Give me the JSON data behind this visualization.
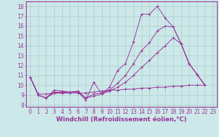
{
  "background_color": "#cce8e8",
  "grid_color": "#aacccc",
  "line_color": "#993399",
  "xlabel": "Windchill (Refroidissement éolien,°C)",
  "xlabel_fontsize": 6.5,
  "tick_fontsize": 5.5,
  "xlim": [
    -0.5,
    23.5
  ],
  "ylim": [
    7.8,
    18.5
  ],
  "yticks": [
    8,
    9,
    10,
    11,
    12,
    13,
    14,
    15,
    16,
    17,
    18
  ],
  "xticks": [
    0,
    1,
    2,
    3,
    4,
    5,
    6,
    7,
    8,
    9,
    10,
    11,
    12,
    13,
    14,
    15,
    16,
    17,
    18,
    19,
    20,
    21,
    22,
    23
  ],
  "line1_x": [
    0,
    1,
    2,
    3,
    4,
    5,
    6,
    7,
    8,
    9,
    10,
    11,
    12,
    13,
    14,
    15,
    16,
    17,
    18,
    19,
    20,
    21,
    22
  ],
  "line1_y": [
    10.8,
    9.0,
    8.7,
    9.5,
    9.4,
    9.3,
    9.3,
    8.5,
    10.3,
    9.1,
    9.8,
    11.5,
    12.2,
    14.4,
    17.2,
    17.2,
    18.0,
    16.8,
    15.9,
    14.2,
    12.2,
    11.1,
    10.0
  ],
  "line2_x": [
    0,
    1,
    2,
    3,
    4,
    5,
    6,
    7,
    8,
    9,
    10,
    11,
    12,
    13,
    14,
    15,
    16,
    17,
    18,
    19,
    20,
    21,
    22
  ],
  "line2_y": [
    10.8,
    9.0,
    8.7,
    9.3,
    9.3,
    9.3,
    9.4,
    8.7,
    9.1,
    9.2,
    9.5,
    10.2,
    11.0,
    12.2,
    13.5,
    14.3,
    15.5,
    16.0,
    15.9,
    14.2,
    12.2,
    11.1,
    10.0
  ],
  "line3_x": [
    0,
    1,
    2,
    3,
    4,
    5,
    6,
    7,
    8,
    9,
    10,
    11,
    12,
    13,
    14,
    15,
    16,
    17,
    18,
    19,
    20,
    21,
    22
  ],
  "line3_y": [
    10.8,
    9.0,
    8.7,
    9.2,
    9.2,
    9.3,
    9.3,
    8.7,
    8.9,
    9.1,
    9.4,
    9.8,
    10.3,
    11.0,
    11.8,
    12.5,
    13.3,
    14.0,
    14.8,
    14.2,
    12.2,
    11.1,
    10.0
  ],
  "line4_x": [
    0,
    1,
    2,
    3,
    4,
    5,
    6,
    7,
    8,
    9,
    10,
    11,
    12,
    13,
    14,
    15,
    16,
    17,
    18,
    19,
    20,
    21,
    22
  ],
  "line4_y": [
    10.8,
    9.1,
    9.1,
    9.2,
    9.2,
    9.2,
    9.2,
    9.2,
    9.3,
    9.4,
    9.5,
    9.5,
    9.6,
    9.6,
    9.7,
    9.7,
    9.8,
    9.8,
    9.9,
    9.9,
    10.0,
    10.0,
    10.0
  ]
}
